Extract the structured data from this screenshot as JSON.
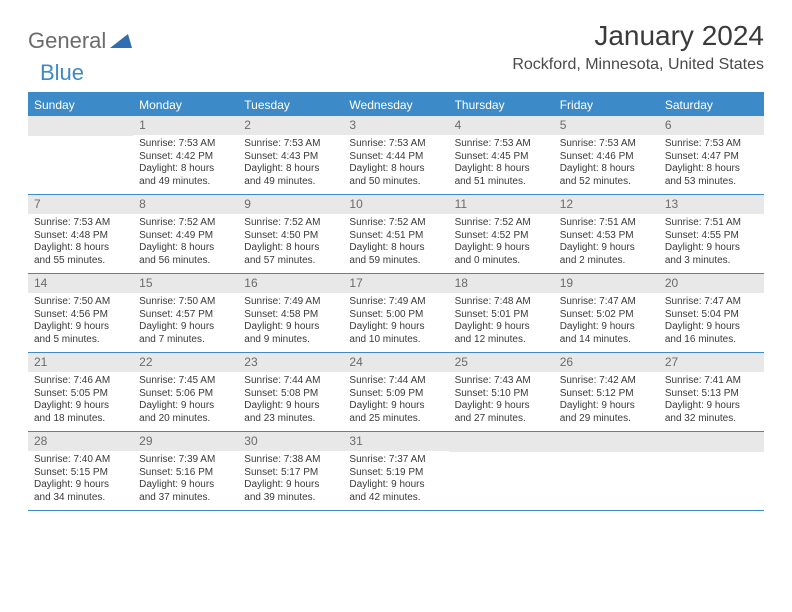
{
  "brand": {
    "word1": "General",
    "word2": "Blue"
  },
  "title": "January 2024",
  "location": "Rockford, Minnesota, United States",
  "colors": {
    "accent": "#3d8ac9",
    "header_shade": "#e8e8e8",
    "text": "#3a3a3a",
    "muted": "#6b6b6b",
    "background": "#ffffff"
  },
  "daynames": [
    "Sunday",
    "Monday",
    "Tuesday",
    "Wednesday",
    "Thursday",
    "Friday",
    "Saturday"
  ],
  "weeks": [
    [
      {
        "num": "",
        "lines": []
      },
      {
        "num": "1",
        "lines": [
          "Sunrise: 7:53 AM",
          "Sunset: 4:42 PM",
          "Daylight: 8 hours",
          "and 49 minutes."
        ]
      },
      {
        "num": "2",
        "lines": [
          "Sunrise: 7:53 AM",
          "Sunset: 4:43 PM",
          "Daylight: 8 hours",
          "and 49 minutes."
        ]
      },
      {
        "num": "3",
        "lines": [
          "Sunrise: 7:53 AM",
          "Sunset: 4:44 PM",
          "Daylight: 8 hours",
          "and 50 minutes."
        ]
      },
      {
        "num": "4",
        "lines": [
          "Sunrise: 7:53 AM",
          "Sunset: 4:45 PM",
          "Daylight: 8 hours",
          "and 51 minutes."
        ]
      },
      {
        "num": "5",
        "lines": [
          "Sunrise: 7:53 AM",
          "Sunset: 4:46 PM",
          "Daylight: 8 hours",
          "and 52 minutes."
        ]
      },
      {
        "num": "6",
        "lines": [
          "Sunrise: 7:53 AM",
          "Sunset: 4:47 PM",
          "Daylight: 8 hours",
          "and 53 minutes."
        ]
      }
    ],
    [
      {
        "num": "7",
        "lines": [
          "Sunrise: 7:53 AM",
          "Sunset: 4:48 PM",
          "Daylight: 8 hours",
          "and 55 minutes."
        ]
      },
      {
        "num": "8",
        "lines": [
          "Sunrise: 7:52 AM",
          "Sunset: 4:49 PM",
          "Daylight: 8 hours",
          "and 56 minutes."
        ]
      },
      {
        "num": "9",
        "lines": [
          "Sunrise: 7:52 AM",
          "Sunset: 4:50 PM",
          "Daylight: 8 hours",
          "and 57 minutes."
        ]
      },
      {
        "num": "10",
        "lines": [
          "Sunrise: 7:52 AM",
          "Sunset: 4:51 PM",
          "Daylight: 8 hours",
          "and 59 minutes."
        ]
      },
      {
        "num": "11",
        "lines": [
          "Sunrise: 7:52 AM",
          "Sunset: 4:52 PM",
          "Daylight: 9 hours",
          "and 0 minutes."
        ]
      },
      {
        "num": "12",
        "lines": [
          "Sunrise: 7:51 AM",
          "Sunset: 4:53 PM",
          "Daylight: 9 hours",
          "and 2 minutes."
        ]
      },
      {
        "num": "13",
        "lines": [
          "Sunrise: 7:51 AM",
          "Sunset: 4:55 PM",
          "Daylight: 9 hours",
          "and 3 minutes."
        ]
      }
    ],
    [
      {
        "num": "14",
        "lines": [
          "Sunrise: 7:50 AM",
          "Sunset: 4:56 PM",
          "Daylight: 9 hours",
          "and 5 minutes."
        ]
      },
      {
        "num": "15",
        "lines": [
          "Sunrise: 7:50 AM",
          "Sunset: 4:57 PM",
          "Daylight: 9 hours",
          "and 7 minutes."
        ]
      },
      {
        "num": "16",
        "lines": [
          "Sunrise: 7:49 AM",
          "Sunset: 4:58 PM",
          "Daylight: 9 hours",
          "and 9 minutes."
        ]
      },
      {
        "num": "17",
        "lines": [
          "Sunrise: 7:49 AM",
          "Sunset: 5:00 PM",
          "Daylight: 9 hours",
          "and 10 minutes."
        ]
      },
      {
        "num": "18",
        "lines": [
          "Sunrise: 7:48 AM",
          "Sunset: 5:01 PM",
          "Daylight: 9 hours",
          "and 12 minutes."
        ]
      },
      {
        "num": "19",
        "lines": [
          "Sunrise: 7:47 AM",
          "Sunset: 5:02 PM",
          "Daylight: 9 hours",
          "and 14 minutes."
        ]
      },
      {
        "num": "20",
        "lines": [
          "Sunrise: 7:47 AM",
          "Sunset: 5:04 PM",
          "Daylight: 9 hours",
          "and 16 minutes."
        ]
      }
    ],
    [
      {
        "num": "21",
        "lines": [
          "Sunrise: 7:46 AM",
          "Sunset: 5:05 PM",
          "Daylight: 9 hours",
          "and 18 minutes."
        ]
      },
      {
        "num": "22",
        "lines": [
          "Sunrise: 7:45 AM",
          "Sunset: 5:06 PM",
          "Daylight: 9 hours",
          "and 20 minutes."
        ]
      },
      {
        "num": "23",
        "lines": [
          "Sunrise: 7:44 AM",
          "Sunset: 5:08 PM",
          "Daylight: 9 hours",
          "and 23 minutes."
        ]
      },
      {
        "num": "24",
        "lines": [
          "Sunrise: 7:44 AM",
          "Sunset: 5:09 PM",
          "Daylight: 9 hours",
          "and 25 minutes."
        ]
      },
      {
        "num": "25",
        "lines": [
          "Sunrise: 7:43 AM",
          "Sunset: 5:10 PM",
          "Daylight: 9 hours",
          "and 27 minutes."
        ]
      },
      {
        "num": "26",
        "lines": [
          "Sunrise: 7:42 AM",
          "Sunset: 5:12 PM",
          "Daylight: 9 hours",
          "and 29 minutes."
        ]
      },
      {
        "num": "27",
        "lines": [
          "Sunrise: 7:41 AM",
          "Sunset: 5:13 PM",
          "Daylight: 9 hours",
          "and 32 minutes."
        ]
      }
    ],
    [
      {
        "num": "28",
        "lines": [
          "Sunrise: 7:40 AM",
          "Sunset: 5:15 PM",
          "Daylight: 9 hours",
          "and 34 minutes."
        ]
      },
      {
        "num": "29",
        "lines": [
          "Sunrise: 7:39 AM",
          "Sunset: 5:16 PM",
          "Daylight: 9 hours",
          "and 37 minutes."
        ]
      },
      {
        "num": "30",
        "lines": [
          "Sunrise: 7:38 AM",
          "Sunset: 5:17 PM",
          "Daylight: 9 hours",
          "and 39 minutes."
        ]
      },
      {
        "num": "31",
        "lines": [
          "Sunrise: 7:37 AM",
          "Sunset: 5:19 PM",
          "Daylight: 9 hours",
          "and 42 minutes."
        ]
      },
      {
        "num": "",
        "lines": []
      },
      {
        "num": "",
        "lines": []
      },
      {
        "num": "",
        "lines": []
      }
    ]
  ]
}
